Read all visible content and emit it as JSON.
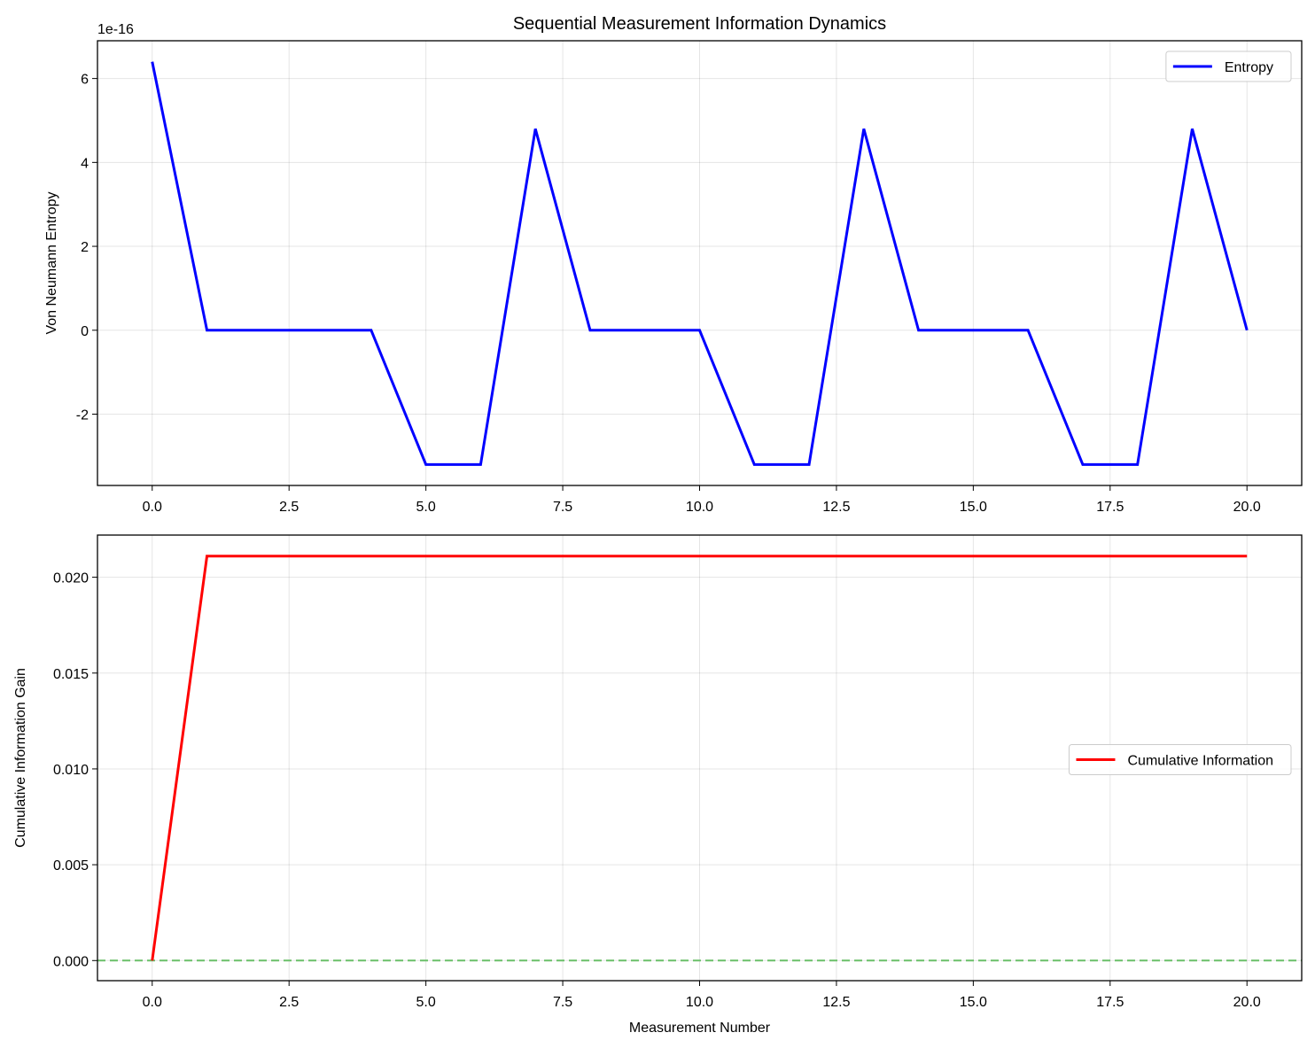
{
  "chart_data": [
    {
      "type": "line",
      "title": "Sequential Measurement Information Dynamics",
      "xlabel": "",
      "ylabel": "Von Neumann Entropy",
      "offset_label": "1e-16",
      "xlim": [
        -1.0,
        21.0
      ],
      "ylim": [
        -3.7,
        6.9
      ],
      "xticks": [
        0.0,
        2.5,
        5.0,
        7.5,
        10.0,
        12.5,
        15.0,
        17.5,
        20.0
      ],
      "xtick_labels": [
        "0.0",
        "2.5",
        "5.0",
        "7.5",
        "10.0",
        "12.5",
        "15.0",
        "17.5",
        "20.0"
      ],
      "yticks": [
        -2,
        0,
        2,
        4,
        6
      ],
      "ytick_labels": [
        "-2",
        "0",
        "2",
        "4",
        "6"
      ],
      "grid": true,
      "legend_position": "upper-right",
      "series": [
        {
          "name": "Entropy",
          "color": "#0000ff",
          "x": [
            0,
            1,
            2,
            3,
            4,
            5,
            6,
            7,
            8,
            9,
            10,
            11,
            12,
            13,
            14,
            15,
            16,
            17,
            18,
            19,
            20
          ],
          "values": [
            6.4,
            0,
            0,
            0,
            0,
            -3.2,
            -3.2,
            4.8,
            0,
            0,
            0,
            -3.2,
            -3.2,
            4.8,
            0,
            0,
            0,
            -3.2,
            -3.2,
            4.8,
            0
          ]
        }
      ]
    },
    {
      "type": "line",
      "title": "",
      "xlabel": "Measurement Number",
      "ylabel": "Cumulative Information Gain",
      "xlim": [
        -1.0,
        21.0
      ],
      "ylim": [
        -0.00105,
        0.0222
      ],
      "xticks": [
        0.0,
        2.5,
        5.0,
        7.5,
        10.0,
        12.5,
        15.0,
        17.5,
        20.0
      ],
      "xtick_labels": [
        "0.0",
        "2.5",
        "5.0",
        "7.5",
        "10.0",
        "12.5",
        "15.0",
        "17.5",
        "20.0"
      ],
      "yticks": [
        0.0,
        0.005,
        0.01,
        0.015,
        0.02
      ],
      "ytick_labels": [
        "0.000",
        "0.005",
        "0.010",
        "0.015",
        "0.020"
      ],
      "grid": true,
      "legend_position": "center-right",
      "reference_line": {
        "y": 0.0,
        "color": "#6abf69",
        "style": "dashed"
      },
      "series": [
        {
          "name": "Cumulative Information",
          "color": "#ff0000",
          "x": [
            0,
            1,
            2,
            3,
            4,
            5,
            6,
            7,
            8,
            9,
            10,
            11,
            12,
            13,
            14,
            15,
            16,
            17,
            18,
            19,
            20
          ],
          "values": [
            0,
            0.0211,
            0.0211,
            0.0211,
            0.0211,
            0.0211,
            0.0211,
            0.0211,
            0.0211,
            0.0211,
            0.0211,
            0.0211,
            0.0211,
            0.0211,
            0.0211,
            0.0211,
            0.0211,
            0.0211,
            0.0211,
            0.0211,
            0.0211
          ]
        }
      ]
    }
  ]
}
